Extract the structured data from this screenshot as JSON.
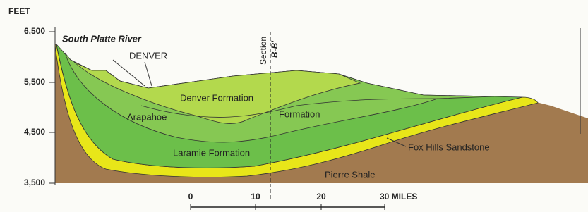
{
  "axis": {
    "unit": "FEET",
    "ticks": [
      "6,500",
      "5,500",
      "4,500",
      "3,500"
    ]
  },
  "labels": {
    "river": "South Platte River",
    "city": "DENVER",
    "denver_formation": "Denver Formation",
    "arapahoe": "Arapahoe",
    "arapahoe_formation": "Formation",
    "laramie": "Laramie Formation",
    "fox_hills": "Fox Hills Sandstone",
    "pierre": "Pierre Shale"
  },
  "section": {
    "word": "Section",
    "id": "B-B'"
  },
  "scale": {
    "ticks": [
      "0",
      "10",
      "20",
      "30 MILES"
    ]
  }
}
